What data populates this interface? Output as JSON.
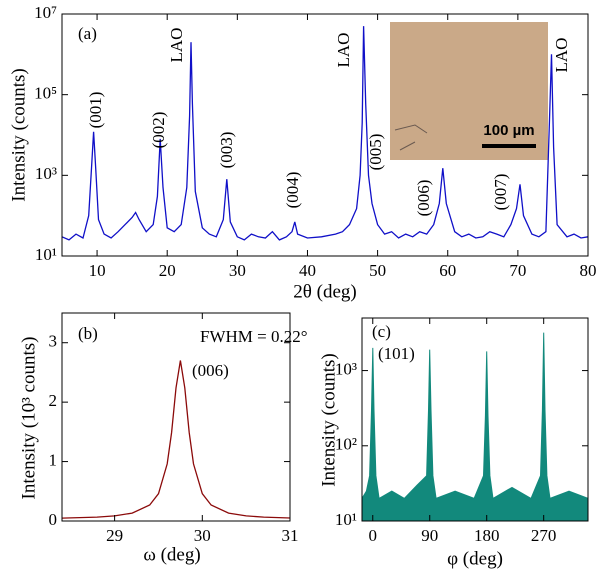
{
  "chart_data": [
    {
      "type": "line",
      "log_y": true,
      "color": "#1010c8",
      "xlabel": "2θ (deg)",
      "ylabel": "Intensity (counts)",
      "annotations": [
        "(a)",
        "LAO",
        "(001)",
        "(002)",
        "(003)",
        "(004)",
        "LAO",
        "(005)",
        "(006)",
        "(007)",
        "LAO"
      ],
      "inset_label": "100 µm",
      "xlim": [
        5,
        80
      ],
      "xticks": [
        10,
        20,
        30,
        40,
        50,
        60,
        70,
        80
      ],
      "ylim": [
        10,
        10000000
      ],
      "yticks": [
        {
          "value": 10,
          "label": "10¹"
        },
        {
          "value": 1000,
          "label": "10³"
        },
        {
          "value": 100000,
          "label": "10⁵"
        },
        {
          "value": 10000000,
          "label": "10⁷"
        }
      ],
      "x": [
        5,
        6,
        7,
        8,
        8.8,
        9.2,
        9.5,
        9.8,
        10.2,
        11,
        12,
        13,
        14,
        15,
        15.5,
        16,
        17,
        18,
        18.6,
        19,
        19.4,
        20,
        21,
        22,
        22.8,
        23.2,
        23.4,
        23.6,
        24,
        25,
        26,
        27,
        28,
        28.5,
        29,
        30,
        31,
        32,
        33,
        34,
        35,
        36,
        37,
        37.8,
        38.2,
        38.6,
        40,
        42,
        44,
        45,
        46,
        47,
        47.5,
        47.8,
        48,
        48.3,
        48.7,
        49.2,
        50,
        51,
        52,
        53,
        54,
        55,
        56,
        57,
        58,
        58.8,
        59.3,
        59.8,
        61,
        62,
        63,
        64,
        65,
        66,
        67,
        68,
        69,
        69.8,
        70.3,
        70.8,
        72,
        73,
        74,
        74.5,
        74.8,
        75.1,
        75.6,
        77,
        78,
        79,
        80
      ],
      "values": [
        30,
        25,
        35,
        28,
        100,
        1500,
        12000,
        1500,
        80,
        35,
        28,
        40,
        60,
        90,
        120,
        80,
        40,
        60,
        300,
        8000,
        500,
        50,
        40,
        60,
        500,
        30000,
        2000000,
        60000,
        400,
        50,
        35,
        30,
        80,
        800,
        70,
        30,
        25,
        35,
        30,
        28,
        40,
        25,
        30,
        40,
        70,
        35,
        28,
        30,
        35,
        40,
        60,
        150,
        1000,
        20000,
        5000000,
        60000,
        1000,
        200,
        60,
        35,
        40,
        28,
        35,
        30,
        40,
        35,
        60,
        200,
        1500,
        200,
        40,
        30,
        35,
        28,
        30,
        40,
        35,
        30,
        60,
        150,
        600,
        100,
        35,
        30,
        40,
        20000,
        1000000,
        5000,
        60,
        30,
        35,
        28,
        30
      ]
    },
    {
      "type": "line",
      "log_y": false,
      "color": "#8b0a0a",
      "xlabel": "ω (deg)",
      "ylabel": "Intensity (10³ counts)",
      "annotations": [
        "(b)",
        "FWHM = 0.22°",
        "(006)"
      ],
      "xlim": [
        28.4,
        31
      ],
      "xticks": [
        29,
        30,
        31
      ],
      "ylim": [
        0,
        3.5
      ],
      "yticks": [
        0,
        1,
        2,
        3
      ],
      "x": [
        28.4,
        28.8,
        29.0,
        29.2,
        29.4,
        29.5,
        29.6,
        29.65,
        29.7,
        29.75,
        29.8,
        29.85,
        29.9,
        30.0,
        30.1,
        30.3,
        30.5,
        30.7,
        31.0
      ],
      "values": [
        0.048,
        0.066,
        0.086,
        0.133,
        0.27,
        0.46,
        0.96,
        1.49,
        2.24,
        2.7,
        2.24,
        1.49,
        0.96,
        0.46,
        0.27,
        0.133,
        0.086,
        0.066,
        0.05
      ]
    },
    {
      "type": "area",
      "log_y": true,
      "color": "#12897c",
      "xlabel": "φ (deg)",
      "ylabel": "Intensity (counts)",
      "annotations": [
        "(c)",
        "(101)"
      ],
      "xlim": [
        -17,
        340
      ],
      "xticks": [
        0,
        90,
        180,
        270
      ],
      "ylim": [
        10,
        5000
      ],
      "yticks": [
        {
          "value": 10,
          "label": "10¹"
        },
        {
          "value": 100,
          "label": "10²"
        },
        {
          "value": 1000,
          "label": "10³"
        }
      ],
      "x": [
        -17,
        -10,
        -5,
        -2,
        0,
        2,
        5,
        10,
        30,
        50,
        70,
        85,
        88,
        90,
        92,
        95,
        100,
        130,
        160,
        175,
        178,
        180,
        182,
        185,
        190,
        220,
        250,
        265,
        268,
        270,
        272,
        275,
        280,
        310,
        340
      ],
      "values": [
        20,
        25,
        40,
        300,
        2000,
        300,
        40,
        20,
        25,
        20,
        30,
        40,
        300,
        1900,
        300,
        40,
        20,
        25,
        20,
        40,
        250,
        1800,
        250,
        40,
        20,
        28,
        20,
        40,
        300,
        3200,
        300,
        40,
        20,
        25,
        20
      ]
    }
  ]
}
